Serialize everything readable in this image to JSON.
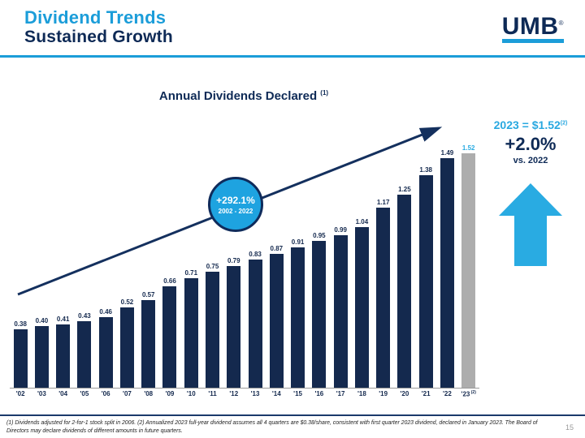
{
  "slide": {
    "title_line1": "Dividend Trends",
    "title_line2": "Sustained Growth",
    "page_number": "15",
    "logo_text": "UMB",
    "logo_reg": "®"
  },
  "chart_data": {
    "type": "bar",
    "title": "Annual Dividends Declared",
    "title_superscript": "(1)",
    "categories": [
      "'02",
      "'03",
      "'04",
      "'05",
      "'06",
      "'07",
      "'08",
      "'09",
      "'10",
      "'11",
      "'12",
      "'13",
      "'14",
      "'15",
      "'16",
      "'17",
      "'18",
      "'19",
      "'20",
      "'21",
      "'22",
      "'23"
    ],
    "values": [
      0.38,
      0.4,
      0.41,
      0.43,
      0.46,
      0.52,
      0.57,
      0.66,
      0.71,
      0.75,
      0.79,
      0.83,
      0.87,
      0.91,
      0.95,
      0.99,
      1.04,
      1.17,
      1.25,
      1.38,
      1.49,
      1.52
    ],
    "labels": [
      "0.38",
      "0.40",
      "0.41",
      "0.43",
      "0.46",
      "0.52",
      "0.57",
      "0.66",
      "0.71",
      "0.75",
      "0.79",
      "0.83",
      "0.87",
      "0.91",
      "0.95",
      "0.99",
      "1.04",
      "1.17",
      "1.25",
      "1.38",
      "1.49",
      "1.52"
    ],
    "highlight_index": 21,
    "last_category_superscript": "(2)",
    "ylim": [
      0,
      1.6
    ],
    "grid": false,
    "legend": "none",
    "bar_color": "#14294E",
    "highlight_bar_color": "#ADADAD",
    "label_color": "#14294E",
    "highlight_label_color": "#29ABE2",
    "trend_annotation": {
      "line1": "+292.1%",
      "line2": "2002 - 2022"
    }
  },
  "callout": {
    "line1": "2023 = $1.52",
    "superscript": "(2)",
    "line2": "+2.0%",
    "line3": "vs. 2022"
  },
  "footnote": "(1) Dividends adjusted for 2-for-1 stock split in 2006. (2) Annualized 2023 full-year dividend assumes all 4 quarters are $0.38/share, consistent with first quarter 2023 dividend, declared in January 2023. The Board of Directors may declare dividends of different amounts in future quarters.",
  "colors": {
    "brand_light_blue": "#1B9DD9",
    "brand_navy": "#0E2A56",
    "trend_line": "#14305E"
  }
}
